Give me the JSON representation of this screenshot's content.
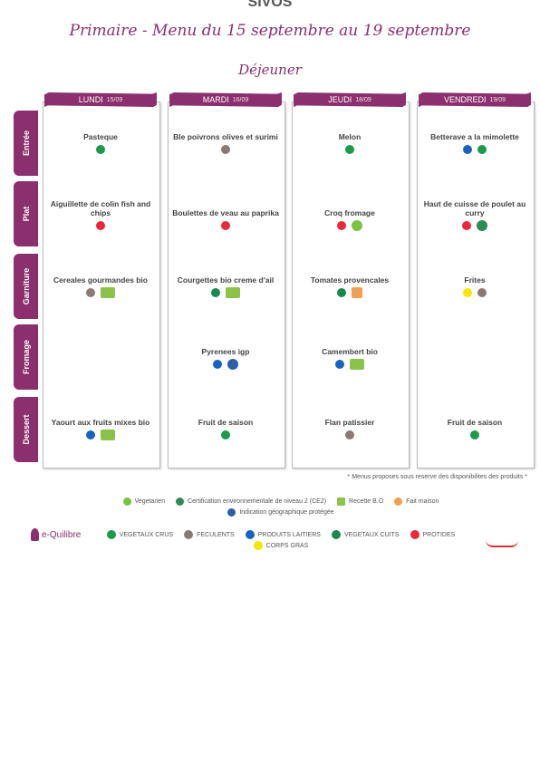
{
  "header": {
    "org": "SIVOS",
    "title": "Primaire - Menu du 15 septembre au 19 septembre",
    "meal": "Déjeuner"
  },
  "days": [
    {
      "name": "LUNDI",
      "date": "15/09"
    },
    {
      "name": "MARDI",
      "date": "16/09"
    },
    {
      "name": "JEUDI",
      "date": "18/09"
    },
    {
      "name": "VENDREDI",
      "date": "19/09"
    }
  ],
  "rows": [
    "Entrée",
    "Plat",
    "Garniture",
    "Fromage",
    "Dessert"
  ],
  "menu": [
    [
      "Pasteque",
      "Ble poivrons olives et surimi",
      "Melon",
      "Betterave a la mimolette"
    ],
    [
      "Aiguillette de colin fish and chips",
      "Boulettes de veau au paprika",
      "Croq fromage",
      "Haut de cuisse de poulet au curry"
    ],
    [
      "Cereales gourmandes bio",
      "Courgettes bio creme d'ail",
      "Tomates provencales",
      "Frites"
    ],
    [
      null,
      "Pyrenees igp",
      "Camembert bio",
      null
    ],
    [
      "Yaourt aux fruits mixes bio",
      "Fruit de saison",
      "Flan patissier",
      "Fruit de saison"
    ]
  ],
  "footnote": "* Menus proposes sous reserve des disponibilites des produits *",
  "labels_legend": [
    "Vegetarien",
    "Certification environnementale de niveau 2 (CE2)",
    "Recette B.O",
    "Fait maison",
    "Indication géographique protégée"
  ],
  "food_groups": [
    "VEGETAUX CRUS",
    "FECULENTS",
    "PRODUITS LAITIERS",
    "VEGETAUX CUITS",
    "PROTIDES",
    "CORPS GRAS"
  ],
  "logo": "e-Quilibre"
}
